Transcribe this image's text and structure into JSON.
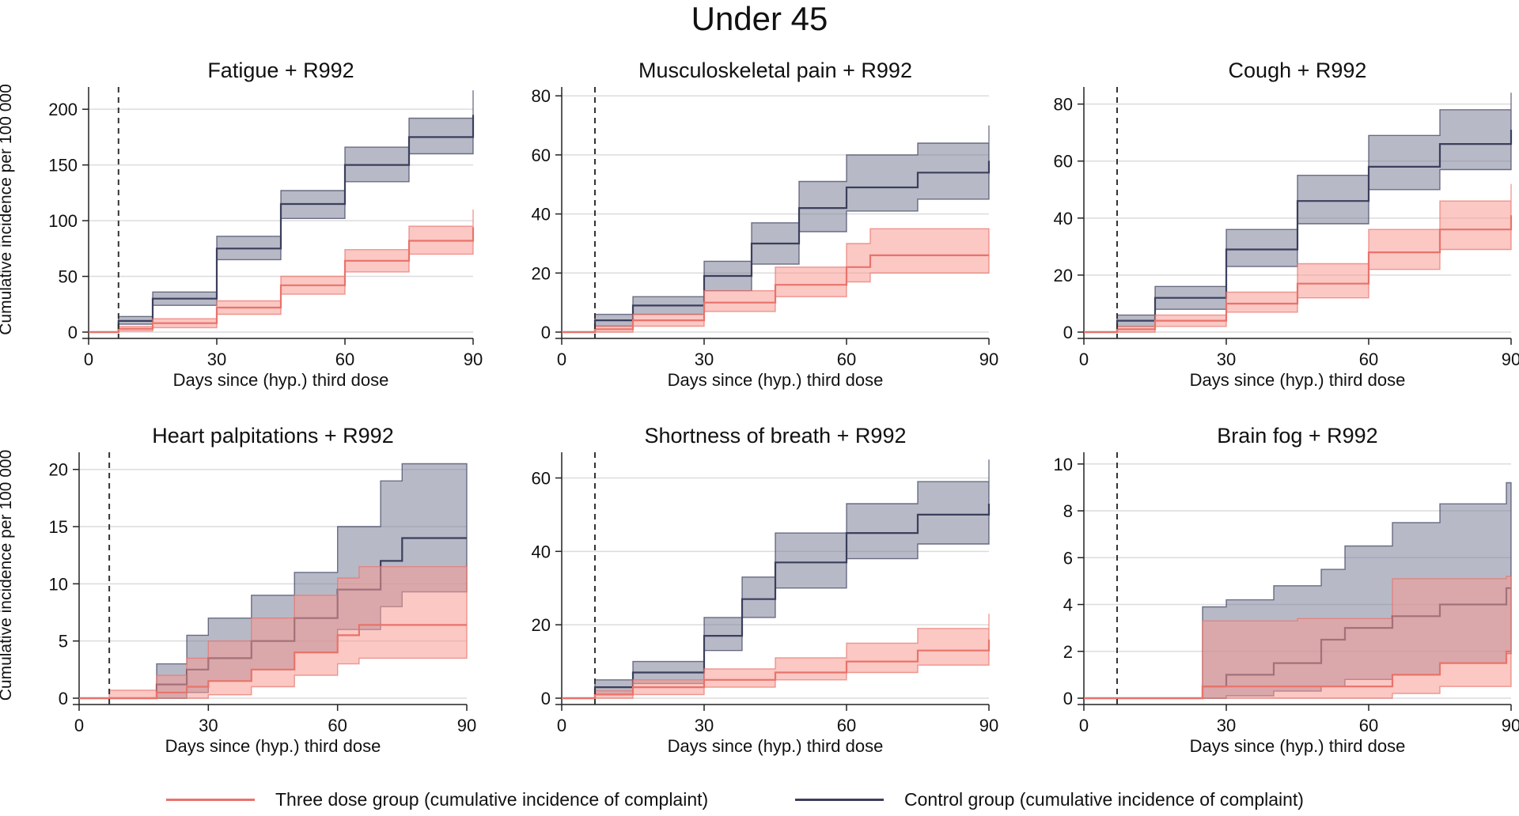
{
  "title": "Under 45",
  "colors": {
    "three_dose_line": "#e8736b",
    "three_dose_band": "#f79b93",
    "control_line": "#3b3f5c",
    "control_band": "#7b7f98",
    "grid": "#dcdcdc",
    "marker": "#333333"
  },
  "legend": {
    "three_dose": "Three dose group (cumulative incidence of complaint)",
    "control": "Control group (cumulative incidence of complaint)"
  },
  "chart_data": [
    {
      "type": "line",
      "title": "Fatigue + R992",
      "xlabel": "Days since (hyp.) third dose",
      "ylabel": "Cumulative incidence per 100 000",
      "xlim": [
        0,
        90
      ],
      "ylim": [
        0,
        220
      ],
      "xticks": [
        0,
        30,
        60,
        90
      ],
      "yticks": [
        0,
        50,
        100,
        150,
        200
      ],
      "vline_x": 7,
      "step": true,
      "series": [
        {
          "name": "Control group",
          "x": [
            0,
            7,
            15,
            30,
            45,
            60,
            75,
            90
          ],
          "values": [
            0,
            10,
            30,
            75,
            115,
            150,
            175,
            195
          ],
          "lower": [
            0,
            7,
            24,
            65,
            102,
            135,
            160,
            177
          ],
          "upper": [
            0,
            14,
            36,
            86,
            127,
            166,
            192,
            217
          ]
        },
        {
          "name": "Three dose group",
          "x": [
            0,
            7,
            15,
            30,
            45,
            60,
            75,
            90
          ],
          "values": [
            0,
            3,
            8,
            22,
            42,
            64,
            82,
            94
          ],
          "lower": [
            0,
            1,
            4,
            16,
            34,
            54,
            70,
            82
          ],
          "upper": [
            0,
            5,
            12,
            28,
            50,
            74,
            95,
            110
          ]
        }
      ]
    },
    {
      "type": "line",
      "title": "Musculoskeletal pain + R992",
      "xlabel": "Days since (hyp.) third dose",
      "ylabel": "",
      "xlim": [
        0,
        90
      ],
      "ylim": [
        0,
        83
      ],
      "xticks": [
        0,
        30,
        60,
        90
      ],
      "yticks": [
        0,
        20,
        40,
        60,
        80
      ],
      "vline_x": 7,
      "step": true,
      "series": [
        {
          "name": "Control group",
          "x": [
            0,
            7,
            15,
            30,
            40,
            50,
            60,
            75,
            90
          ],
          "values": [
            0,
            4,
            9,
            19,
            30,
            42,
            49,
            54,
            58
          ],
          "lower": [
            0,
            2,
            6,
            14,
            23,
            34,
            41,
            45,
            48
          ],
          "upper": [
            0,
            6,
            12,
            24,
            37,
            51,
            60,
            64,
            70
          ]
        },
        {
          "name": "Three dose group",
          "x": [
            0,
            7,
            15,
            30,
            45,
            60,
            65,
            90
          ],
          "values": [
            0,
            1,
            4,
            10,
            16,
            22,
            26,
            26
          ],
          "lower": [
            0,
            0,
            2,
            7,
            12,
            17,
            20,
            20
          ],
          "upper": [
            0,
            2,
            6,
            14,
            22,
            30,
            35,
            35
          ]
        }
      ]
    },
    {
      "type": "line",
      "title": "Cough + R992",
      "xlabel": "Days since (hyp.) third dose",
      "ylabel": "",
      "xlim": [
        0,
        90
      ],
      "ylim": [
        0,
        86
      ],
      "xticks": [
        0,
        30,
        60,
        90
      ],
      "yticks": [
        0,
        20,
        40,
        60,
        80
      ],
      "vline_x": 7,
      "step": true,
      "series": [
        {
          "name": "Control group",
          "x": [
            0,
            7,
            15,
            30,
            45,
            60,
            75,
            90
          ],
          "values": [
            0,
            4,
            12,
            29,
            46,
            58,
            66,
            71
          ],
          "lower": [
            0,
            2,
            8,
            23,
            38,
            50,
            57,
            60
          ],
          "upper": [
            0,
            6,
            16,
            36,
            55,
            69,
            78,
            84
          ]
        },
        {
          "name": "Three dose group",
          "x": [
            0,
            7,
            15,
            30,
            45,
            60,
            75,
            90
          ],
          "values": [
            0,
            1,
            4,
            10,
            17,
            28,
            36,
            41
          ],
          "lower": [
            0,
            0,
            2,
            7,
            12,
            22,
            29,
            34
          ],
          "upper": [
            0,
            2,
            6,
            14,
            24,
            36,
            46,
            52
          ]
        }
      ]
    },
    {
      "type": "line",
      "title": "Heart palpitations + R992",
      "xlabel": "Days since (hyp.) third dose",
      "ylabel": "Cumulative incidence per 100 000",
      "xlim": [
        0,
        90
      ],
      "ylim": [
        0,
        21.5
      ],
      "xticks": [
        0,
        30,
        60,
        90
      ],
      "yticks": [
        0,
        5,
        10,
        15,
        20
      ],
      "vline_x": 7,
      "step": true,
      "series": [
        {
          "name": "Control group",
          "x": [
            0,
            18,
            25,
            30,
            40,
            50,
            60,
            70,
            75,
            90
          ],
          "values": [
            0,
            1.2,
            2.5,
            3.5,
            5,
            7,
            9.5,
            12,
            14,
            14
          ],
          "lower": [
            0,
            0,
            0.5,
            1.5,
            2.5,
            4,
            6,
            8,
            9.3,
            9.3
          ],
          "upper": [
            0,
            3,
            5.5,
            7,
            9,
            11,
            15,
            19,
            20.5,
            20.5
          ]
        },
        {
          "name": "Three dose group",
          "x": [
            0,
            7,
            18,
            25,
            30,
            40,
            50,
            60,
            65,
            90
          ],
          "values": [
            0,
            0,
            0.5,
            1,
            1.5,
            2.5,
            4,
            5.5,
            6.4,
            6.4
          ],
          "lower": [
            0,
            0,
            0,
            0,
            0.3,
            1,
            2,
            3,
            3.5,
            3.5
          ],
          "upper": [
            0,
            0.7,
            2,
            3.5,
            5,
            7,
            9,
            10.5,
            11.5,
            11.5
          ]
        }
      ]
    },
    {
      "type": "line",
      "title": "Shortness of breath + R992",
      "xlabel": "Days since (hyp.) third dose",
      "ylabel": "",
      "xlim": [
        0,
        90
      ],
      "ylim": [
        0,
        67
      ],
      "xticks": [
        0,
        30,
        60,
        90
      ],
      "yticks": [
        0,
        20,
        40,
        60
      ],
      "vline_x": 7,
      "step": true,
      "series": [
        {
          "name": "Control group",
          "x": [
            0,
            7,
            15,
            30,
            38,
            45,
            60,
            75,
            90
          ],
          "values": [
            0,
            3,
            7,
            17,
            27,
            37,
            45,
            50,
            53
          ],
          "lower": [
            0,
            1,
            4,
            13,
            22,
            30,
            38,
            42,
            43
          ],
          "upper": [
            0,
            5,
            10,
            22,
            33,
            45,
            53,
            59,
            65
          ]
        },
        {
          "name": "Three dose group",
          "x": [
            0,
            7,
            15,
            30,
            45,
            60,
            75,
            90
          ],
          "values": [
            0,
            1,
            3,
            5,
            7,
            10,
            13,
            16
          ],
          "lower": [
            0,
            0,
            1,
            3,
            5,
            7,
            9,
            11
          ],
          "upper": [
            0,
            2,
            5,
            8,
            11,
            15,
            19,
            23
          ]
        }
      ]
    },
    {
      "type": "line",
      "title": "Brain fog + R992",
      "xlabel": "Days since (hyp.) third dose",
      "ylabel": "",
      "xlim": [
        0,
        90
      ],
      "ylim": [
        0,
        10.5
      ],
      "xticks": [
        0,
        30,
        60,
        90
      ],
      "yticks": [
        0,
        2,
        4,
        6,
        8,
        10
      ],
      "vline_x": 7,
      "step": true,
      "series": [
        {
          "name": "Control group",
          "x": [
            0,
            25,
            30,
            40,
            50,
            55,
            65,
            75,
            89,
            90
          ],
          "values": [
            0,
            0.5,
            1,
            1.5,
            2.5,
            3,
            3.5,
            4,
            4.7,
            4.7
          ],
          "lower": [
            0,
            0,
            0.1,
            0.3,
            0.5,
            0.8,
            1,
            1.5,
            1.9,
            1.9
          ],
          "upper": [
            0,
            3.9,
            4.2,
            4.8,
            5.5,
            6.5,
            7.5,
            8.3,
            9.2,
            9.2
          ]
        },
        {
          "name": "Three dose group",
          "x": [
            0,
            25,
            30,
            45,
            65,
            75,
            89,
            90
          ],
          "values": [
            0,
            0.5,
            0.5,
            0.5,
            1,
            1.5,
            2,
            2
          ],
          "lower": [
            0,
            0,
            0,
            0,
            0.2,
            0.5,
            0.5,
            0.5
          ],
          "upper": [
            0,
            3.3,
            3.3,
            3.4,
            5.1,
            5.1,
            5.2,
            5.2
          ]
        }
      ]
    }
  ]
}
